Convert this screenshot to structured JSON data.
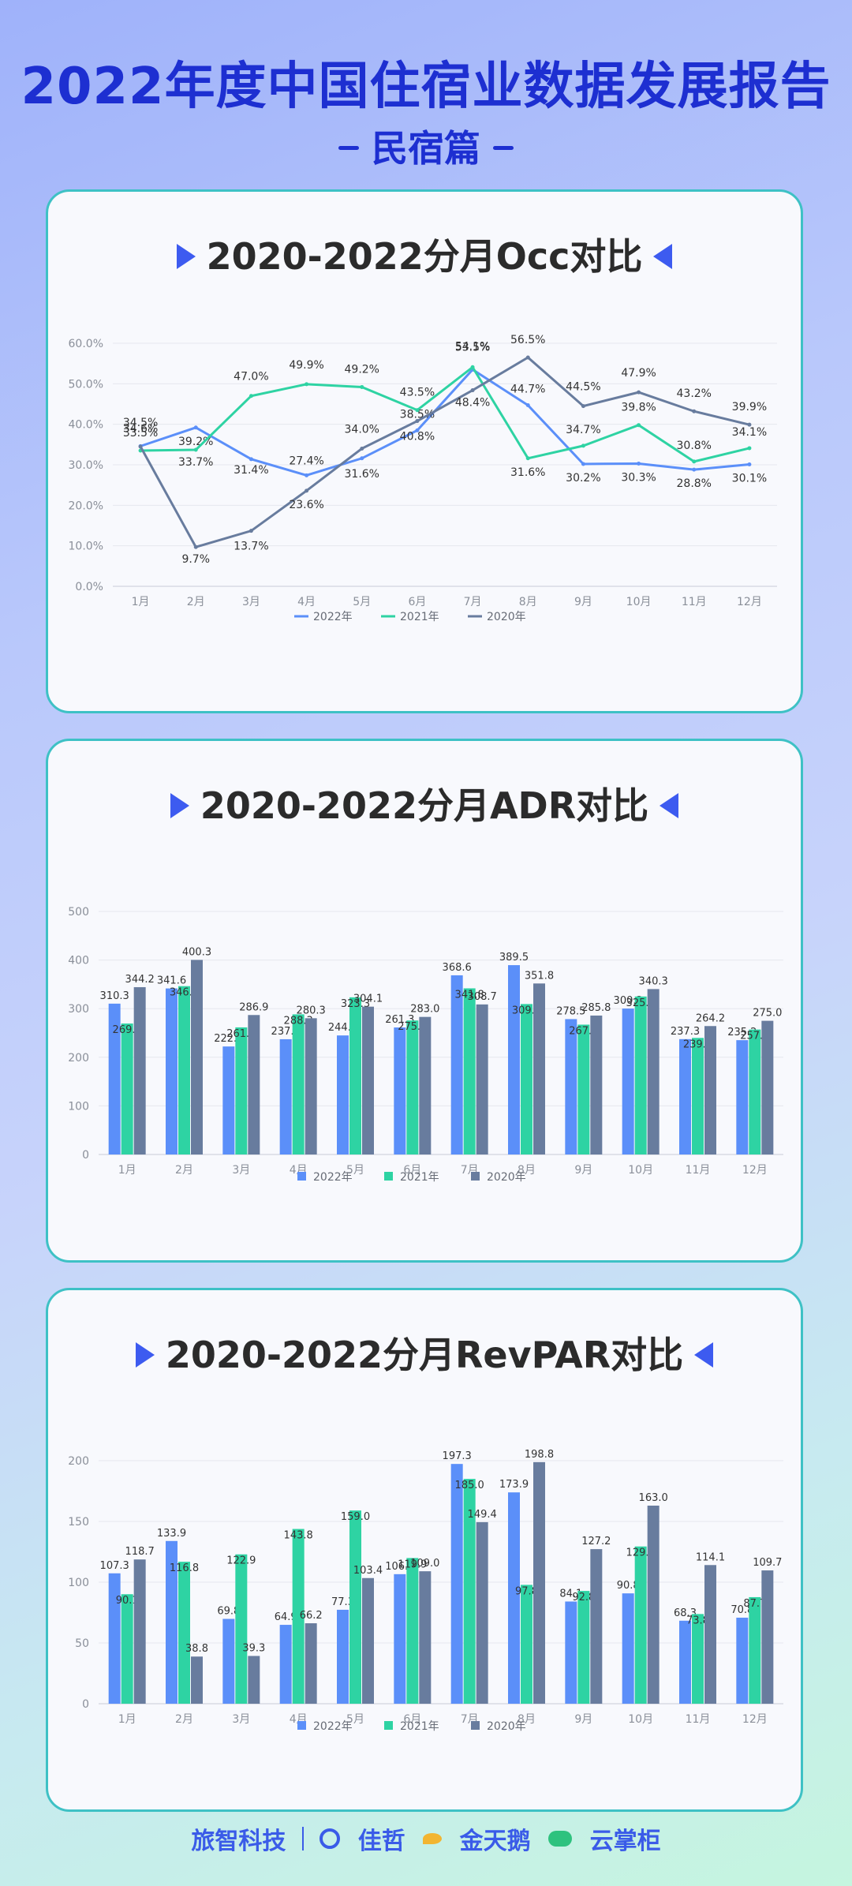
{
  "header": {
    "title": "2022年度中国住宿业数据发展报告",
    "subtitle": "民宿篇"
  },
  "colors": {
    "y2022": "#5b8ff9",
    "y2021": "#2ed3a3",
    "y2020": "#687c9e",
    "accent": "#1d2fd1"
  },
  "chart_data": [
    {
      "type": "line",
      "title": "2020-2022分月Occ对比",
      "categories": [
        "1月",
        "2月",
        "3月",
        "4月",
        "5月",
        "6月",
        "7月",
        "8月",
        "9月",
        "10月",
        "11月",
        "12月"
      ],
      "yticks": [
        "0.0%",
        "10.0%",
        "20.0%",
        "30.0%",
        "40.0%",
        "50.0%",
        "60.0%"
      ],
      "ylim": [
        0,
        60
      ],
      "legend_position": "bottom",
      "series": [
        {
          "name": "2022年",
          "values": [
            34.6,
            39.2,
            31.4,
            27.4,
            31.6,
            38.5,
            53.5,
            44.7,
            30.2,
            30.3,
            28.8,
            30.1
          ],
          "labels": [
            "34.6%",
            "39.2%",
            "31.4%",
            "27.4%",
            "31.6%",
            "38.5%",
            "53.5%",
            "44.7%",
            "30.2%",
            "30.3%",
            "28.8%",
            "30.1%"
          ]
        },
        {
          "name": "2021年",
          "values": [
            33.5,
            33.7,
            47.0,
            49.9,
            49.2,
            43.5,
            54.1,
            31.6,
            34.7,
            39.8,
            30.8,
            34.1
          ],
          "labels": [
            "33.5%",
            "33.7%",
            "47.0%",
            "49.9%",
            "49.2%",
            "43.5%",
            "54.1%",
            "31.6%",
            "34.7%",
            "39.8%",
            "30.8%",
            "34.1%"
          ]
        },
        {
          "name": "2020年",
          "values": [
            34.5,
            9.7,
            13.7,
            23.6,
            34.0,
            40.8,
            48.4,
            56.5,
            44.5,
            47.9,
            43.2,
            39.9
          ],
          "labels": [
            "34.5%",
            "9.7%",
            "13.7%",
            "23.6%",
            "34.0%",
            "40.8%",
            "48.4%",
            "56.5%",
            "44.5%",
            "47.9%",
            "43.2%",
            "39.9%"
          ]
        }
      ]
    },
    {
      "type": "bar",
      "title": "2020-2022分月ADR对比",
      "categories": [
        "1月",
        "2月",
        "3月",
        "4月",
        "5月",
        "6月",
        "7月",
        "8月",
        "9月",
        "10月",
        "11月",
        "12月"
      ],
      "yticks": [
        "0",
        "100",
        "200",
        "300",
        "400",
        "500"
      ],
      "ylim": [
        0,
        500
      ],
      "legend_position": "bottom",
      "series": [
        {
          "name": "2022年",
          "values": [
            310.3,
            341.6,
            222.2,
            237.1,
            244.9,
            261.3,
            368.6,
            389.5,
            278.5,
            300.2,
            237.3,
            235.2
          ],
          "labels": [
            "310.3",
            "341.6",
            "222.2",
            "237.1",
            "244.9",
            "261.3",
            "368.6",
            "389.5",
            "278.5",
            "300.2",
            "237.3",
            "235.2"
          ]
        },
        {
          "name": "2021年",
          "values": [
            269.4,
            346.3,
            261.5,
            288.3,
            323.3,
            275.7,
            341.8,
            309.5,
            267.1,
            325.0,
            239.8,
            257.1
          ],
          "labels": [
            "269.4",
            "346.3",
            "261.5",
            "288.3",
            "323.3",
            "275.7",
            "341.8",
            "309.5",
            "267.1",
            "325.0",
            "239.8",
            "257.1"
          ]
        },
        {
          "name": "2020年",
          "values": [
            344.2,
            400.3,
            286.9,
            280.3,
            304.1,
            283.0,
            308.7,
            351.8,
            285.8,
            340.3,
            264.2,
            275.0
          ],
          "labels": [
            "344.2",
            "400.3",
            "286.9",
            "280.3",
            "304.1",
            "283.0",
            "308.7",
            "351.8",
            "285.8",
            "340.3",
            "264.2",
            "275.0"
          ]
        }
      ]
    },
    {
      "type": "bar",
      "title": "2020-2022分月RevPAR对比",
      "categories": [
        "1月",
        "2月",
        "3月",
        "4月",
        "5月",
        "6月",
        "7月",
        "8月",
        "9月",
        "10月",
        "11月",
        "12月"
      ],
      "yticks": [
        "0",
        "50",
        "100",
        "150",
        "200"
      ],
      "ylim": [
        0,
        200
      ],
      "legend_position": "bottom",
      "series": [
        {
          "name": "2022年",
          "values": [
            107.3,
            133.9,
            69.8,
            64.9,
            77.3,
            106.6,
            197.3,
            173.9,
            84.1,
            90.8,
            68.3,
            70.8
          ],
          "labels": [
            "107.3",
            "133.9",
            "69.8",
            "64.9",
            "77.3",
            "106.6",
            "197.3",
            "173.9",
            "84.1",
            "90.8",
            "68.3",
            "70.8"
          ]
        },
        {
          "name": "2021年",
          "values": [
            90.1,
            116.8,
            122.9,
            143.8,
            159.0,
            119.9,
            185.0,
            97.8,
            92.8,
            129.4,
            73.8,
            87.7
          ],
          "labels": [
            "90.1",
            "116.8",
            "122.9",
            "143.8",
            "159.0",
            "119.9",
            "185.0",
            "97.8",
            "92.8",
            "129.4",
            "73.8",
            "87.7"
          ]
        },
        {
          "name": "2020年",
          "values": [
            118.7,
            38.8,
            39.3,
            66.2,
            103.4,
            109.0,
            149.4,
            198.8,
            127.2,
            163.0,
            114.1,
            109.7
          ],
          "labels": [
            "118.7",
            "38.8",
            "39.3",
            "66.2",
            "103.4",
            "109.0",
            "149.4",
            "198.8",
            "127.2",
            "163.0",
            "114.1",
            "109.7"
          ]
        }
      ]
    }
  ],
  "footer": {
    "brand1": "旅智科技",
    "brand2": "佳哲",
    "brand3": "金天鹅",
    "brand4": "云掌柜"
  }
}
